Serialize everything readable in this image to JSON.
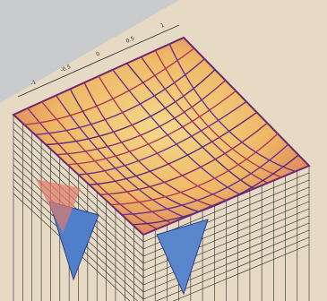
{
  "image": {
    "axis_labels": [
      "-1",
      "-0.5",
      "0",
      "0.5",
      "1"
    ]
  }
}
